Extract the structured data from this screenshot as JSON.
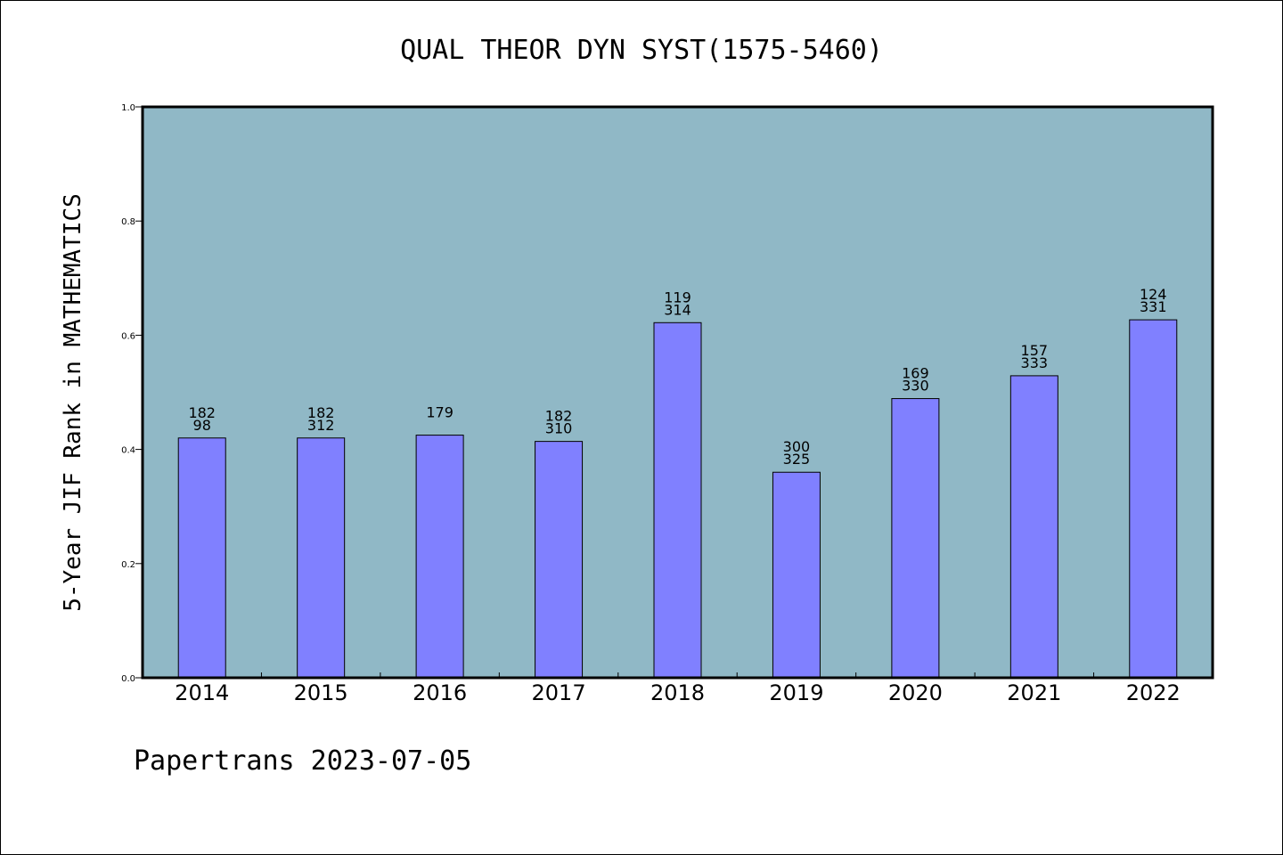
{
  "chart_data": {
    "type": "bar",
    "title": "QUAL THEOR DYN SYST(1575-5460)",
    "ylabel": "5-Year JIF Rank in MATHEMATICS",
    "xlabel": "",
    "ylim": [
      0.0,
      1.0
    ],
    "yticks": [
      "0.0",
      "0.2",
      "0.4",
      "0.6",
      "0.8",
      "1.0"
    ],
    "categories": [
      "2014",
      "2015",
      "2016",
      "2017",
      "2018",
      "2019",
      "2020",
      "2021",
      "2022"
    ],
    "values": [
      0.42,
      0.42,
      0.425,
      0.414,
      0.622,
      0.36,
      0.489,
      0.529,
      0.627
    ],
    "labels_top": [
      "182",
      "182",
      "179",
      "182",
      "119",
      "300",
      "169",
      "157",
      "124"
    ],
    "labels_bottom": [
      "98",
      "312",
      "",
      "310",
      "314",
      "325",
      "330",
      "333",
      "331"
    ],
    "grid": false,
    "legend": "none",
    "colors": {
      "plot_background": "#90b8c6",
      "bar_fill": "#8080ff",
      "bar_stroke": "#000000"
    }
  },
  "footer": "Papertrans 2023-07-05"
}
